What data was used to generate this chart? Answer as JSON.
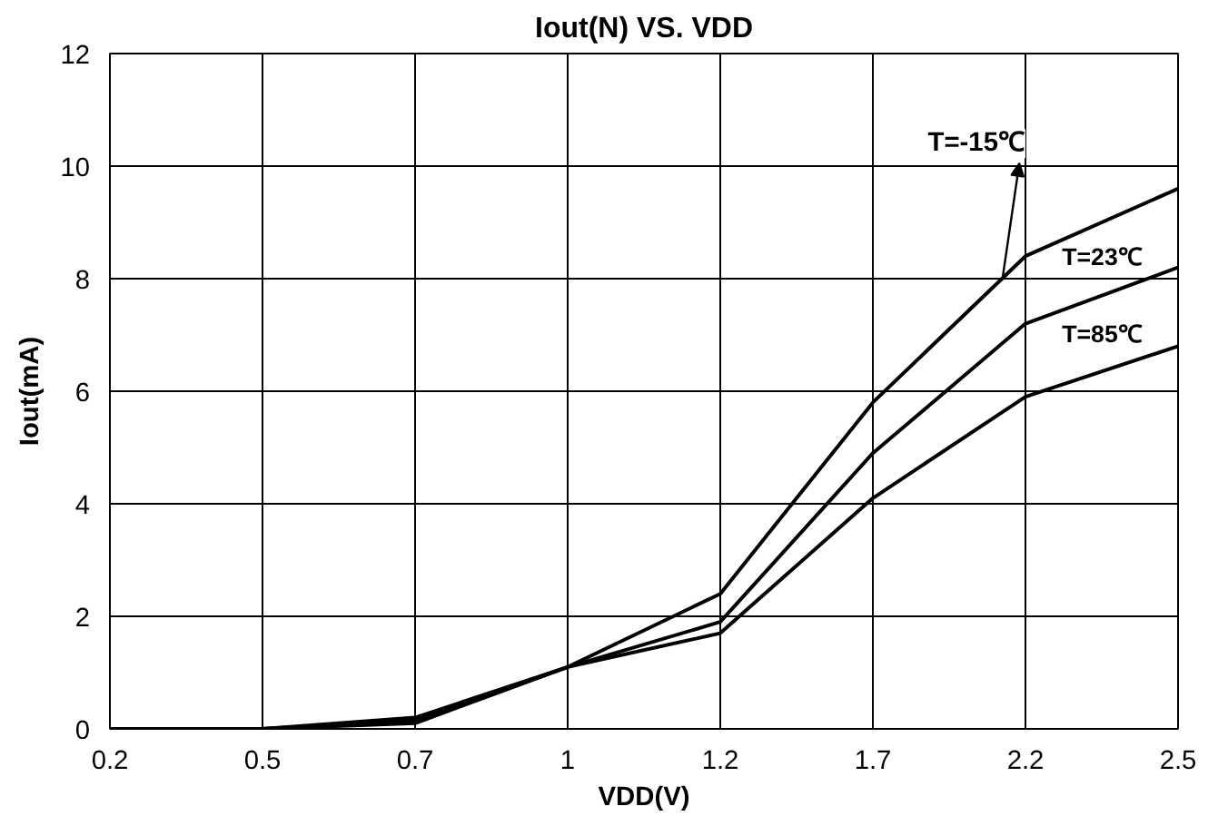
{
  "chart_data": {
    "type": "line",
    "title": "Iout(N) VS. VDD",
    "xlabel": "VDD(V)",
    "ylabel": "Iout(mA)",
    "categories": [
      "0.2",
      "0.5",
      "0.7",
      "1",
      "1.2",
      "1.7",
      "2.2",
      "2.5"
    ],
    "series": [
      {
        "name": "T=-15℃",
        "color": "#000000",
        "values": [
          0,
          0,
          0.2,
          1.1,
          2.4,
          5.8,
          8.4,
          9.6
        ]
      },
      {
        "name": "T=23℃",
        "color": "#000000",
        "values": [
          0,
          0,
          0.15,
          1.1,
          1.9,
          4.9,
          7.2,
          8.2
        ]
      },
      {
        "name": "T=85℃",
        "color": "#000000",
        "values": [
          0,
          0,
          0.1,
          1.1,
          1.7,
          4.1,
          5.9,
          6.8
        ]
      }
    ],
    "ylim": [
      0,
      12
    ],
    "yticks": [
      0,
      2,
      4,
      6,
      8,
      10,
      12
    ],
    "grid": true,
    "legend": false,
    "marker": "none",
    "line_style": "solid"
  }
}
